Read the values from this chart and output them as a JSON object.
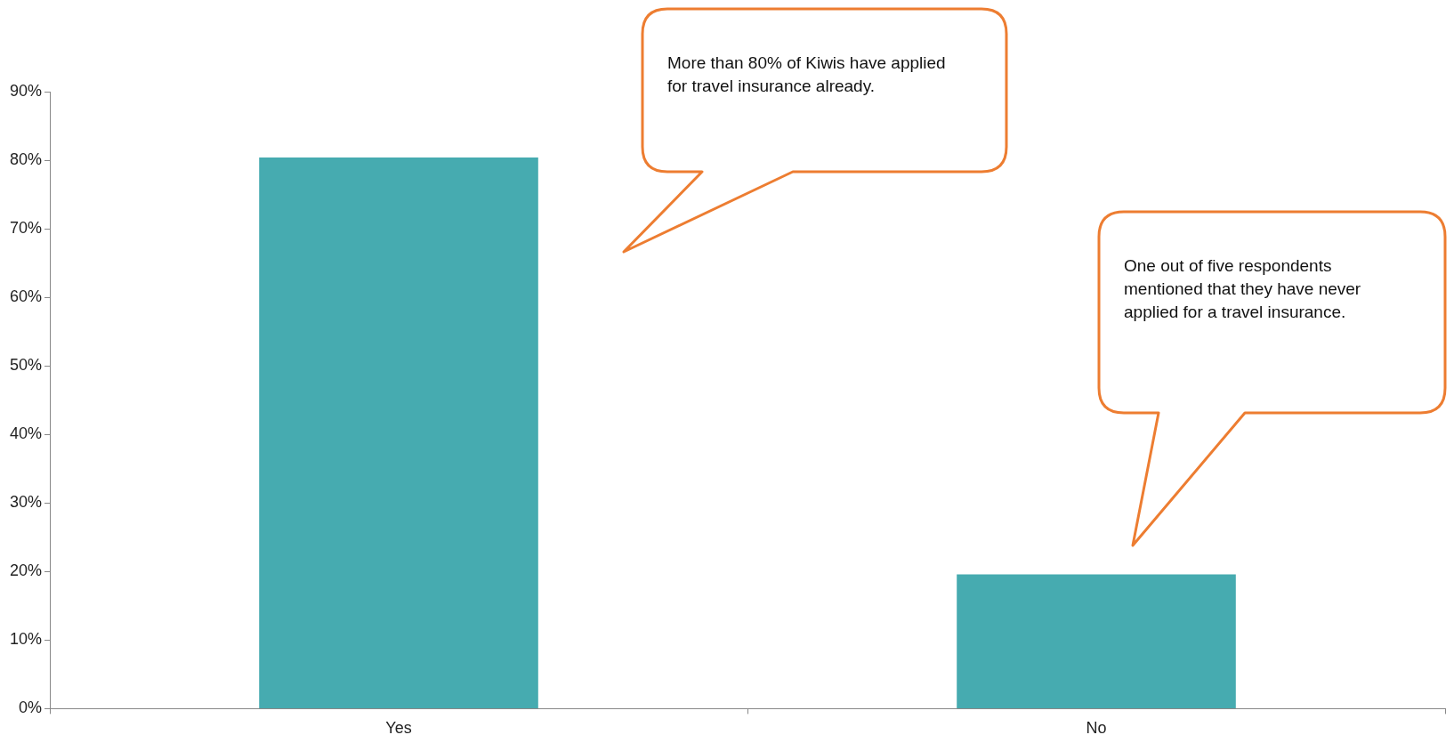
{
  "chart_data": {
    "type": "bar",
    "categories": [
      "Yes",
      "No"
    ],
    "values": [
      80.4,
      19.6
    ],
    "color": "#46abb0",
    "ylim": [
      0,
      90
    ],
    "yticks": [
      {
        "value": 0,
        "label": "0%"
      },
      {
        "value": 10,
        "label": "10%"
      },
      {
        "value": 20,
        "label": "20%"
      },
      {
        "value": 30,
        "label": "30%"
      },
      {
        "value": 40,
        "label": "40%"
      },
      {
        "value": 50,
        "label": "50%"
      },
      {
        "value": 60,
        "label": "60%"
      },
      {
        "value": 70,
        "label": "70%"
      },
      {
        "value": 80,
        "label": "80%"
      },
      {
        "value": 90,
        "label": "90%"
      }
    ],
    "annotations": [
      "More than 80% of Kiwis have applied for travel insurance already.",
      "One out of five respondents mentioned that they have never applied for a travel insurance."
    ]
  }
}
